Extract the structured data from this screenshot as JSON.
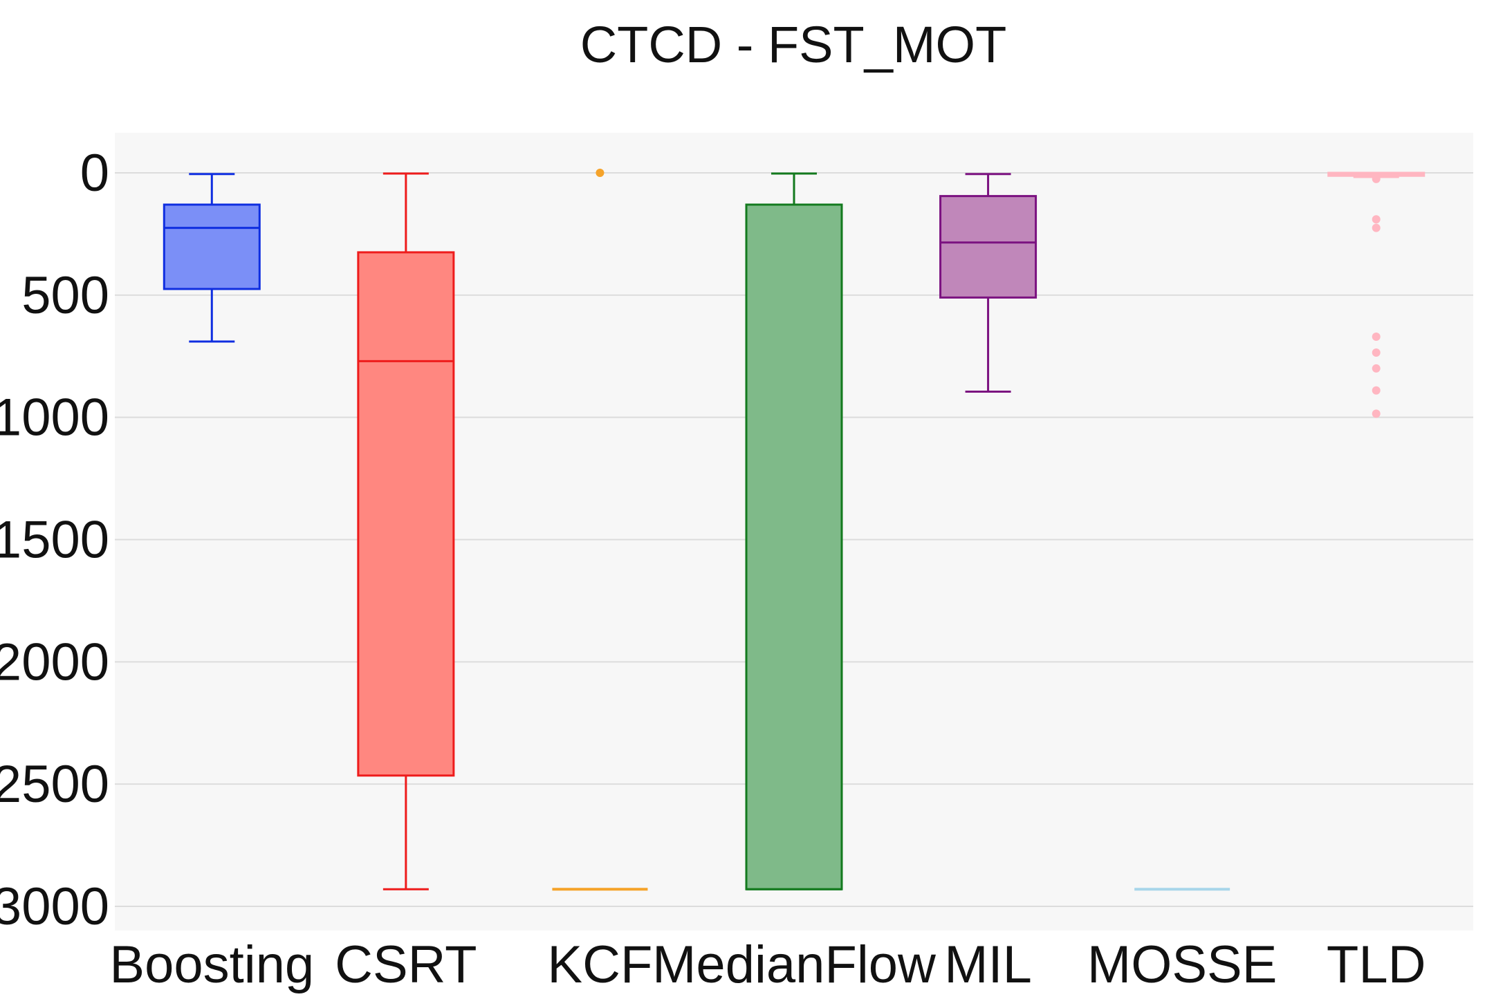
{
  "chart_data": {
    "type": "box",
    "title": "CTCD - FST_MOT",
    "xlabel": "",
    "ylabel": "",
    "y_reversed": true,
    "ylim": [
      -170,
      3100
    ],
    "yticks": [
      0,
      500,
      1000,
      1500,
      2000,
      2500,
      3000
    ],
    "ytick_labels": [
      "0",
      "500",
      "1000",
      "1500",
      "2000",
      "2500",
      "3000"
    ],
    "grid": true,
    "background": "#f7f7f7",
    "categories": [
      "Boosting",
      "CSRT",
      "KCF",
      "MedianFlow",
      "MIL",
      "MOSSE",
      "TLD"
    ],
    "series": [
      {
        "name": "Boosting",
        "color": "#0f2ee0",
        "fill": "#7b8ff7",
        "whisker_low": 5,
        "q1": 130,
        "median": 225,
        "q3": 475,
        "whisker_high": 690,
        "outliers": []
      },
      {
        "name": "CSRT",
        "color": "#ee1c1c",
        "fill": "#ff8780",
        "whisker_low": 3,
        "q1": 325,
        "median": 770,
        "q3": 2465,
        "whisker_high": 2930,
        "outliers": []
      },
      {
        "name": "KCF",
        "color": "#f5a32a",
        "fill": "#f5a32a",
        "whisker_low": 2930,
        "q1": 2930,
        "median": 2930,
        "q3": 2930,
        "whisker_high": 2930,
        "outliers": [
          0
        ]
      },
      {
        "name": "MedianFlow",
        "color": "#137a1e",
        "fill": "#7fba89",
        "whisker_low": 3,
        "q1": 130,
        "median": 2930,
        "q3": 2930,
        "whisker_high": 2930,
        "outliers": []
      },
      {
        "name": "MIL",
        "color": "#7b1280",
        "fill": "#c087ba",
        "whisker_low": 5,
        "q1": 95,
        "median": 285,
        "q3": 510,
        "whisker_high": 895,
        "outliers": []
      },
      {
        "name": "MOSSE",
        "color": "#a8d6ea",
        "fill": "#a8d6ea",
        "whisker_low": 2930,
        "q1": 2930,
        "median": 2930,
        "q3": 2930,
        "whisker_high": 2930,
        "outliers": []
      },
      {
        "name": "TLD",
        "color": "#ffb6c1",
        "fill": "#ffc0cb",
        "whisker_low": 0,
        "q1": 0,
        "median": 5,
        "q3": 12,
        "whisker_high": 17,
        "outliers": [
          25,
          190,
          225,
          670,
          735,
          800,
          890,
          985
        ]
      }
    ]
  }
}
